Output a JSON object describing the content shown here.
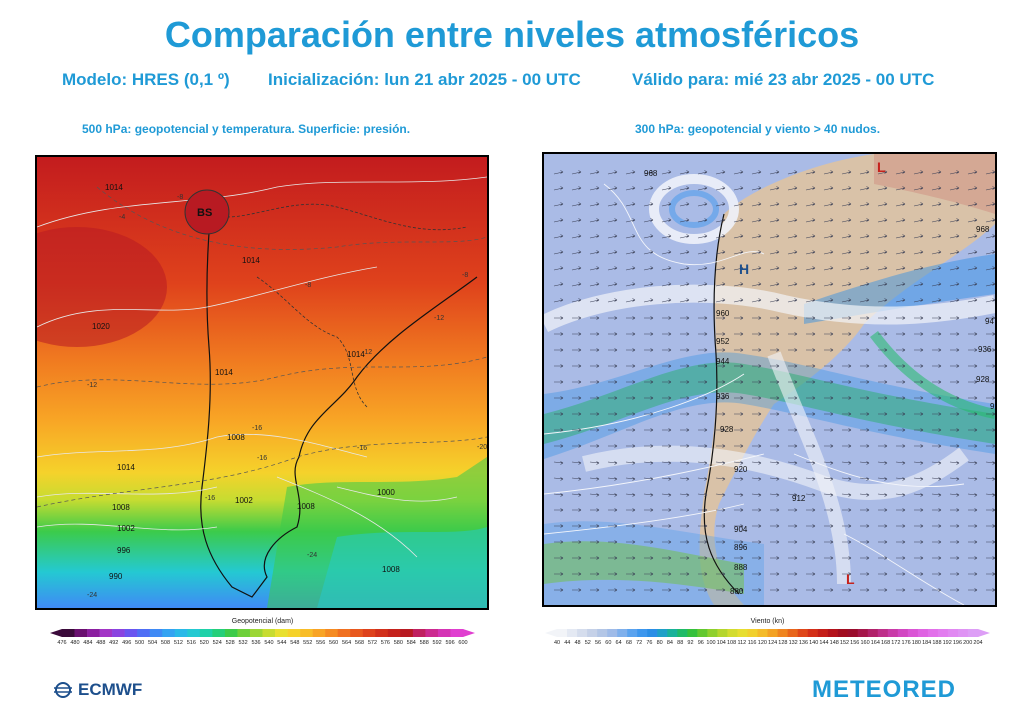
{
  "header": {
    "title": "Comparación entre niveles atmosféricos",
    "model": "Modelo: HRES (0,1 º)",
    "init": "Inicialización: lun 21 abr 2025 - 00 UTC",
    "valid": "Válido para: mié 23 abr 2025 - 00 UTC"
  },
  "left_panel": {
    "caption": "500 hPa: geopotencial y temperatura. Superficie: presión.",
    "isobars": [
      "1014",
      "1014",
      "1020",
      "1014",
      "1008",
      "1002",
      "1008",
      "1014",
      "1008",
      "1002",
      "996",
      "990",
      "1008",
      "1014",
      "1000"
    ],
    "temps": [
      "-8",
      "-4",
      "-8",
      "-12",
      "-12",
      "-16",
      "-16",
      "-16",
      "-20",
      "-16",
      "-24",
      "-24",
      "-12",
      "-8"
    ],
    "pressure_center": "BS",
    "colorbar_title": "Geopotencial (dam)",
    "colorbar_ticks": [
      "476",
      "480",
      "484",
      "488",
      "492",
      "496",
      "500",
      "504",
      "508",
      "512",
      "516",
      "520",
      "524",
      "528",
      "532",
      "536",
      "540",
      "544",
      "548",
      "552",
      "556",
      "560",
      "564",
      "568",
      "572",
      "576",
      "580",
      "584",
      "588",
      "592",
      "596",
      "600"
    ],
    "colorbar_colors": [
      "#3b0a3a",
      "#6a1070",
      "#8b1fa0",
      "#a235c6",
      "#8a44e0",
      "#6a55f0",
      "#4f6ef5",
      "#3f8af5",
      "#34a3f2",
      "#2ab9e8",
      "#24c9d2",
      "#1fd1a8",
      "#25cf7a",
      "#3ccb4a",
      "#6ed03a",
      "#9cd635",
      "#c7dc31",
      "#e8e030",
      "#f5d22b",
      "#f8bd28",
      "#f8a425",
      "#f58b22",
      "#f07020",
      "#e8581e",
      "#de421c",
      "#d2301b",
      "#c5221c",
      "#b81a22",
      "#c02060",
      "#cc2a90",
      "#d534b5",
      "#e03fd0"
    ]
  },
  "right_panel": {
    "caption": "300 hPa: geopotencial y viento > 40 nudos.",
    "contours": [
      "968",
      "968",
      "960",
      "952",
      "944",
      "936",
      "928",
      "920",
      "912",
      "904",
      "896",
      "888",
      "880",
      "94",
      "936",
      "928",
      "92"
    ],
    "highs_lows": [
      "L",
      "H",
      "L"
    ],
    "colorbar_title": "Viento (kn)",
    "colorbar_ticks": [
      "40",
      "44",
      "48",
      "52",
      "56",
      "60",
      "64",
      "68",
      "72",
      "76",
      "80",
      "84",
      "88",
      "92",
      "96",
      "100",
      "104",
      "108",
      "112",
      "116",
      "120",
      "124",
      "128",
      "132",
      "136",
      "140",
      "144",
      "148",
      "152",
      "156",
      "160",
      "164",
      "168",
      "172",
      "176",
      "180",
      "184",
      "188",
      "192",
      "196",
      "200",
      "204"
    ],
    "colorbar_colors": [
      "#f2f4f8",
      "#e4e9f3",
      "#d5dded",
      "#c5d1e8",
      "#b3c6e6",
      "#9fbbe8",
      "#7fb0ec",
      "#5aa3ef",
      "#3d97ee",
      "#2b8ee6",
      "#1fa0c8",
      "#1ab29a",
      "#20bb68",
      "#36c13c",
      "#63c82f",
      "#8fd02d",
      "#b5d62d",
      "#d3dc2f",
      "#e7de30",
      "#f1d02d",
      "#f4bb29",
      "#f3a224",
      "#ef8520",
      "#e8661c",
      "#df4719",
      "#d42f18",
      "#c51e18",
      "#b4121a",
      "#a10c1f",
      "#9a0c2c",
      "#a5164a",
      "#b1226a",
      "#be2f8a",
      "#c93ba8",
      "#d247c2",
      "#da55d5",
      "#df63e2",
      "#e270ea",
      "#e27cef",
      "#e188f2",
      "#df93f4",
      "#dd9ef6"
    ]
  },
  "logos": {
    "left": "ECMWF",
    "right": "METEORED"
  }
}
